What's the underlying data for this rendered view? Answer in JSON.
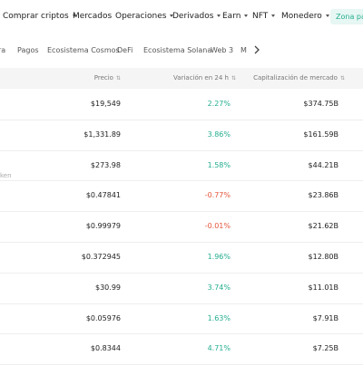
{
  "nav": {
    "items": [
      "Comprar criptos",
      "Mercados",
      "Operaciones",
      "Derivados",
      "Earn",
      "NFT",
      "Monedero"
    ],
    "badge": "Zona para"
  },
  "tabs": [
    "ra",
    "Pagos",
    "Ecosistema Cosmos",
    "DeFi",
    "Ecosistema Solana",
    "Web 3",
    "M"
  ],
  "table": {
    "headers": [
      "Precio",
      "Variación en 24 h",
      "Capitalización de mercado"
    ],
    "rows": [
      {
        "price": "$19,549",
        "change": "2.27%",
        "market_cap": "$374.75B"
      },
      {
        "price": "$1,331.89",
        "change": "3.86%",
        "market_cap": "$161.59B"
      },
      {
        "price": "$273.98",
        "change": "1.58%",
        "market_cap": "$44.21B",
        "note": "ken"
      },
      {
        "price": "$0.47841",
        "change": "-0.77%",
        "market_cap": "$23.86B"
      },
      {
        "price": "$0.99979",
        "change": "-0.01%",
        "market_cap": "$21.62B"
      },
      {
        "price": "$0.372945",
        "change": "1.96%",
        "market_cap": "$12.80B"
      },
      {
        "price": "$30.99",
        "change": "3.74%",
        "market_cap": "$11.01B"
      },
      {
        "price": "$0.05976",
        "change": "1.63%",
        "market_cap": "$7.91B"
      },
      {
        "price": "$0.8344",
        "change": "4.71%",
        "market_cap": "$7.25B"
      }
    ]
  }
}
